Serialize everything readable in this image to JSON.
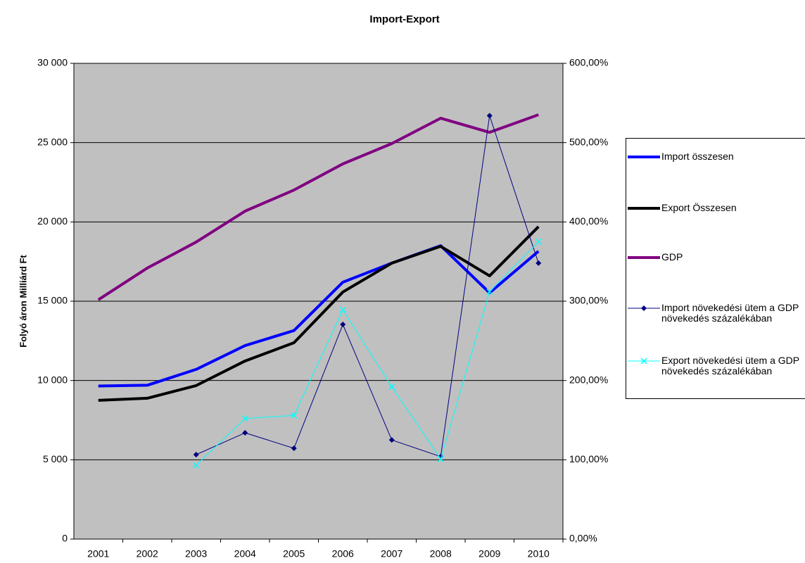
{
  "chart_data": {
    "type": "line",
    "title": "Import-Export",
    "ylabel": "Folyó áron Milliárd Ft",
    "categories": [
      "2001",
      "2002",
      "2003",
      "2004",
      "2005",
      "2006",
      "2007",
      "2008",
      "2009",
      "2010"
    ],
    "ylim": [
      0,
      30000
    ],
    "yticks": [
      0,
      {
        "value": 5000,
        "label": "5 000"
      },
      {
        "value": 10000,
        "label": "10 000"
      },
      {
        "value": 15000,
        "label": "15 000"
      },
      {
        "value": 20000,
        "label": "20 000"
      },
      {
        "value": 25000,
        "label": "25 000"
      },
      {
        "value": 30000,
        "label": "30 000"
      }
    ],
    "y2lim": [
      0,
      600
    ],
    "y2ticks": [
      {
        "value": 0,
        "label": "0,00%"
      },
      {
        "value": 100,
        "label": "100,00%"
      },
      {
        "value": 200,
        "label": "200,00%"
      },
      {
        "value": 300,
        "label": "300,00%"
      },
      {
        "value": 400,
        "label": "400,00%"
      },
      {
        "value": 500,
        "label": "500,00%"
      },
      {
        "value": 600,
        "label": "600,00%"
      }
    ],
    "grid": true,
    "plot_background": "#c0c0c0",
    "series": [
      {
        "name": "Import összesen",
        "color": "#0000ff",
        "line_width": 4,
        "values": [
          9650,
          9700,
          10700,
          12200,
          13150,
          16200,
          17400,
          18500,
          15530,
          18150
        ]
      },
      {
        "name": "Export Összesen",
        "color": "#000000",
        "line_width": 4,
        "values": [
          8750,
          8880,
          9680,
          11230,
          12380,
          15580,
          17400,
          18460,
          16600,
          19700
        ]
      },
      {
        "name": "GDP",
        "color": "#800080",
        "line_width": 4,
        "values": [
          15090,
          17090,
          18730,
          20680,
          22010,
          23660,
          24940,
          26540,
          25650,
          26760
        ]
      },
      {
        "name": "Import növekedési ütem a GDP növekedés százalékában",
        "color": "#000080",
        "line_width": 1,
        "marker": "diamond",
        "axis": "y2",
        "values": [
          null,
          null,
          106.5,
          134,
          114.5,
          270.7,
          125,
          104,
          534,
          348
        ]
      },
      {
        "name": "Export növekedési ütem a GDP növekedés százalékában",
        "color": "#00ffff",
        "line_width": 1,
        "marker": "x",
        "axis": "y2",
        "values": [
          null,
          null,
          93,
          152,
          156,
          289,
          192,
          101,
          312,
          375
        ]
      }
    ]
  }
}
